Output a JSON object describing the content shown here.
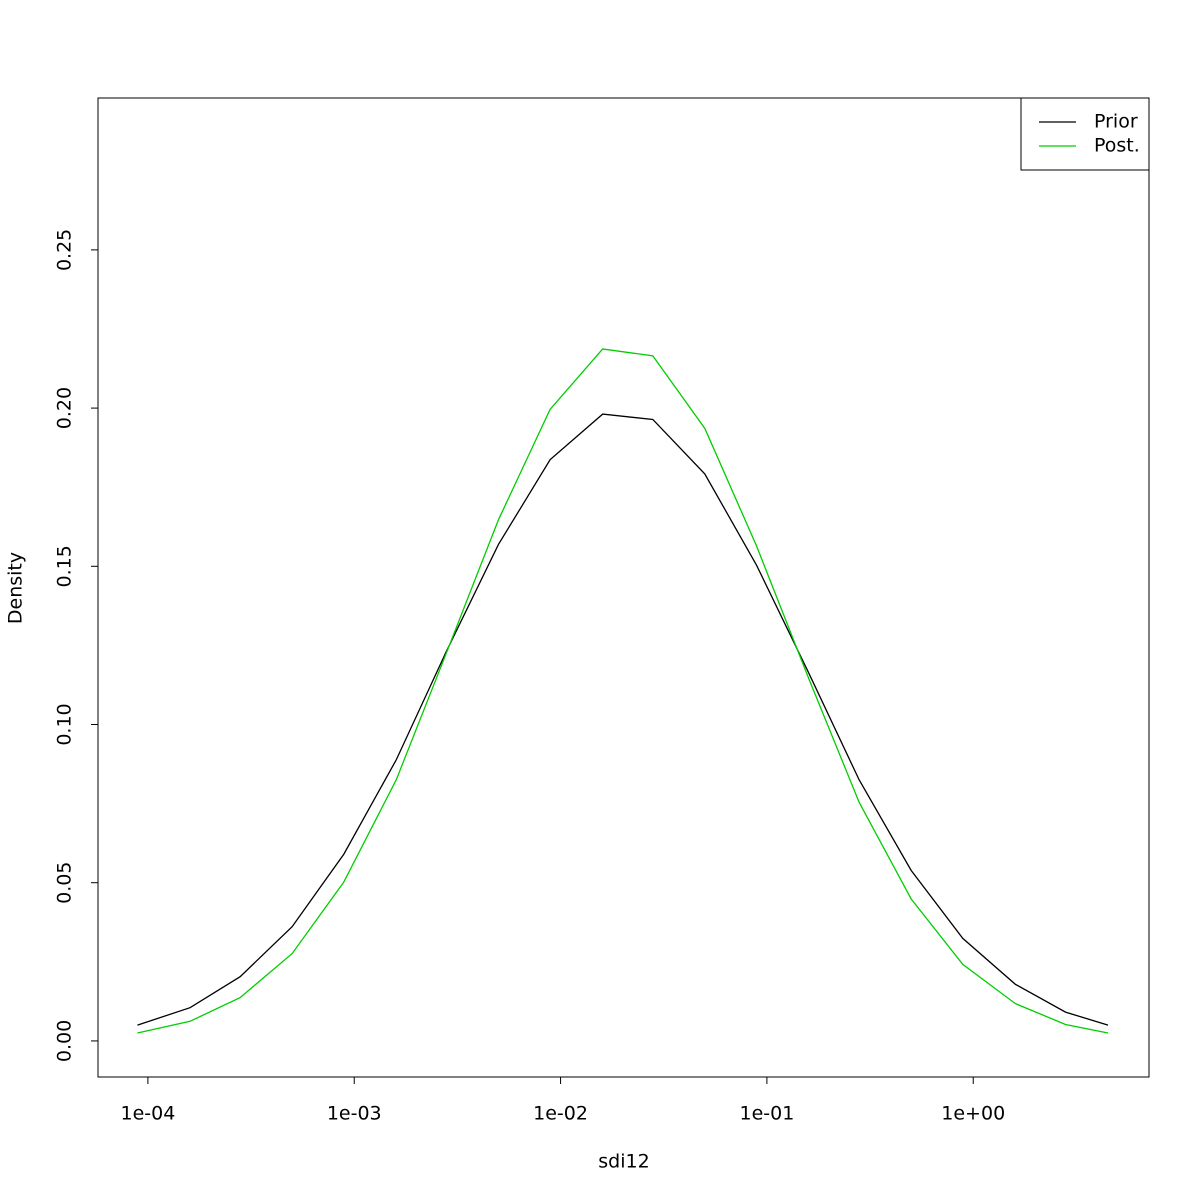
{
  "chart_data": {
    "type": "line",
    "xlabel": "sdi12",
    "ylabel": "Density",
    "xscale": "log",
    "x": [
      8.9e-05,
      0.00016,
      0.00028,
      0.0005,
      0.00089,
      0.0016,
      0.0028,
      0.005,
      0.0089,
      0.016,
      0.028,
      0.05,
      0.089,
      0.16,
      0.28,
      0.5,
      0.89,
      1.6,
      2.8,
      4.5
    ],
    "series": [
      {
        "name": "Prior",
        "color": "#000000",
        "values": [
          0.005,
          0.0105,
          0.0203,
          0.0361,
          0.059,
          0.0889,
          0.1232,
          0.1569,
          0.1837,
          0.1981,
          0.1964,
          0.1792,
          0.1504,
          0.1161,
          0.0825,
          0.0539,
          0.0324,
          0.0179,
          0.0091,
          0.005
        ]
      },
      {
        "name": "Post.",
        "color": "#00cd00",
        "values": [
          0.0025,
          0.0062,
          0.0137,
          0.0276,
          0.0502,
          0.0826,
          0.1227,
          0.1647,
          0.1996,
          0.2187,
          0.2165,
          0.1936,
          0.1565,
          0.1143,
          0.0754,
          0.0449,
          0.0242,
          0.0118,
          0.0052,
          0.0025
        ]
      }
    ],
    "xlim": [
      5.73e-05,
      7.11
    ],
    "xticks": [
      {
        "value": 0.0001,
        "label": "1e-04"
      },
      {
        "value": 0.001,
        "label": "1e-03"
      },
      {
        "value": 0.01,
        "label": "1e-02"
      },
      {
        "value": 0.1,
        "label": "1e-01"
      },
      {
        "value": 1,
        "label": "1e+00"
      }
    ],
    "ylim": [
      -0.0114,
      0.298
    ],
    "yticks": [
      {
        "value": 0,
        "label": "0.00"
      },
      0.05,
      {
        "value": 0.1,
        "label": "0.10"
      },
      0.15,
      {
        "value": 0.2,
        "label": "0.20"
      },
      0.25
    ],
    "legend": "top-right"
  }
}
